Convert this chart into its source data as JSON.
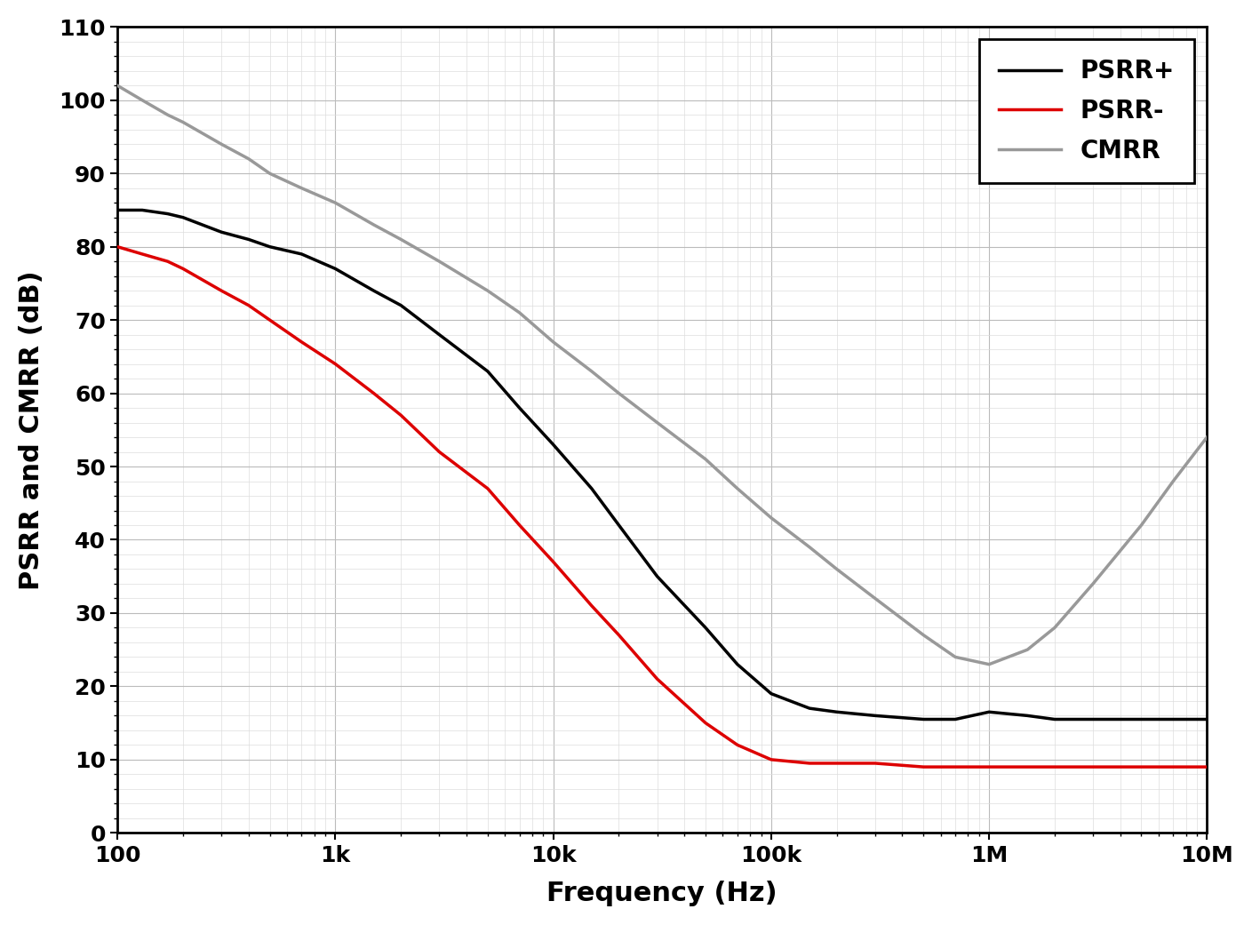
{
  "xlabel": "Frequency (Hz)",
  "ylabel": "PSRR and CMRR (dB)",
  "xlim": [
    100,
    10000000
  ],
  "ylim": [
    0,
    110
  ],
  "yticks": [
    0,
    10,
    20,
    30,
    40,
    50,
    60,
    70,
    80,
    90,
    100,
    110
  ],
  "background_color": "#ffffff",
  "plot_bg_color": "#ffffff",
  "grid_color_major": "#bbbbbb",
  "grid_color_minor": "#dddddd",
  "legend_labels": [
    "PSRR+",
    "PSRR-",
    "CMRR"
  ],
  "legend_colors": [
    "#000000",
    "#dd0000",
    "#999999"
  ],
  "line_width": 2.5,
  "psrr_plus": {
    "freq": [
      100,
      130,
      170,
      200,
      300,
      400,
      500,
      700,
      1000,
      1500,
      2000,
      3000,
      5000,
      7000,
      10000,
      15000,
      20000,
      30000,
      50000,
      70000,
      100000,
      150000,
      200000,
      300000,
      500000,
      700000,
      1000000,
      1500000,
      2000000,
      3000000,
      5000000,
      7000000,
      10000000
    ],
    "dB": [
      85,
      85,
      84.5,
      84,
      82,
      81,
      80,
      79,
      77,
      74,
      72,
      68,
      63,
      58,
      53,
      47,
      42,
      35,
      28,
      23,
      19,
      17,
      16.5,
      16,
      15.5,
      15.5,
      16.5,
      16,
      15.5,
      15.5,
      15.5,
      15.5,
      15.5
    ]
  },
  "psrr_minus": {
    "freq": [
      100,
      130,
      170,
      200,
      300,
      400,
      500,
      700,
      1000,
      1500,
      2000,
      3000,
      5000,
      7000,
      10000,
      15000,
      20000,
      30000,
      50000,
      70000,
      100000,
      150000,
      200000,
      300000,
      500000,
      700000,
      1000000,
      1500000,
      2000000,
      3000000,
      5000000,
      7000000,
      10000000
    ],
    "dB": [
      80,
      79,
      78,
      77,
      74,
      72,
      70,
      67,
      64,
      60,
      57,
      52,
      47,
      42,
      37,
      31,
      27,
      21,
      15,
      12,
      10,
      9.5,
      9.5,
      9.5,
      9.0,
      9.0,
      9.0,
      9.0,
      9.0,
      9.0,
      9.0,
      9.0,
      9.0
    ]
  },
  "cmrr": {
    "freq": [
      100,
      130,
      170,
      200,
      300,
      400,
      500,
      700,
      1000,
      1500,
      2000,
      3000,
      5000,
      7000,
      10000,
      15000,
      20000,
      30000,
      50000,
      70000,
      100000,
      150000,
      200000,
      300000,
      500000,
      700000,
      1000000,
      1500000,
      2000000,
      3000000,
      5000000,
      7000000,
      10000000
    ],
    "dB": [
      102,
      100,
      98,
      97,
      94,
      92,
      90,
      88,
      86,
      83,
      81,
      78,
      74,
      71,
      67,
      63,
      60,
      56,
      51,
      47,
      43,
      39,
      36,
      32,
      27,
      24,
      23,
      25,
      28,
      34,
      42,
      48,
      54
    ]
  }
}
